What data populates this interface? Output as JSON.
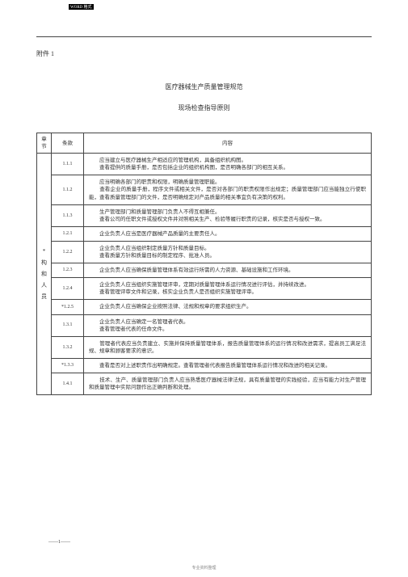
{
  "topLabel": "WORD 格式",
  "attachment": "附件 1",
  "title1": "医疗器械生产质量管理规范",
  "title2": "现场检查指导原则",
  "headers": {
    "chapter": "章节",
    "clause": "条款",
    "content": "内容"
  },
  "chapterLabel": "*\n构\n和\n人\n员",
  "rows": [
    {
      "clause": "1.1.1",
      "content": "　　应当建立与医疗器械生产相适应的管理机构，具备组织机构图。\n　　查看提供的质量手册，是否包括企业的组织机构图，是否明确各部门的相互关系。"
    },
    {
      "clause": "1.1.2",
      "content": "　　应当明确各部门的职责和权限，明确质量管理职能。\n　　查看企业的质量手册，程序文件或相关文件，是否对各部门的职责权限作出规定；质量管理部门应当能独立行使职能，查看质量管理部门的文件，是否明确规定对产品质量的相关事宜负有决策的权利。"
    },
    {
      "clause": "1.1.3",
      "content": "　　生产管理部门和质量管理部门负责人不得互相兼任。\n　　查看公司的任职文件或授权文件并对照相关生产、检验等履行职责的记录，核实是否与授权一致。"
    },
    {
      "clause": "1.2.1",
      "content": "　　企业负责人应当是医疗器械产品质量的主要责任人。"
    },
    {
      "clause": "1.2.2",
      "content": "　　企业负责人应当组织制定质量方针和质量目标。\n　　查看质量方针和质量目标的制定程序、批准人员。"
    },
    {
      "clause": "1.2.3",
      "content": "　　企业负责人应当确保质量管理体系有效运行所需的人力资源、基础设施和工作环境。"
    },
    {
      "clause": "1.2.4",
      "content": "　　企业负责人应当组织实施管理评审，定期对质量管理体系运行情况进行评估，并持续改进。\n　　查看管理评审文件和记录，核实企业负责人是否组织实施管理评审。"
    },
    {
      "clause": "*1.2.5",
      "content": "　　企业负责人应当确保企业按照法律、法规和规章的要求组织生产。"
    },
    {
      "clause": "1.3.1",
      "content": "　　企业负责人应当确定一名管理者代表。\n　　查看管理者代表的任命文件。"
    },
    {
      "clause": "1.3.2",
      "content": "　　管理者代表应当负责建立、实施并保持质量管理体系，报告质量管理体系的运行情况和改进需求，提高员工满足法规、规章和顾客要求的意识。"
    },
    {
      "clause": "*1.3.3",
      "content": "　　查看是否对上述职责作出明确规定。查看管理者代表报告质量管理体系运行情况和改进的相关记录。"
    },
    {
      "clause": "1.4.1",
      "content": "　　技术、生产、质量管理部门负责人应当熟悉医疗器械法律法规，具有质量管理的实践经验，应当有能力对生产管理和质量管理中实际问题作出正确判断和处理。"
    }
  ],
  "pageNum": "——1——",
  "footer": "专业资料整理"
}
